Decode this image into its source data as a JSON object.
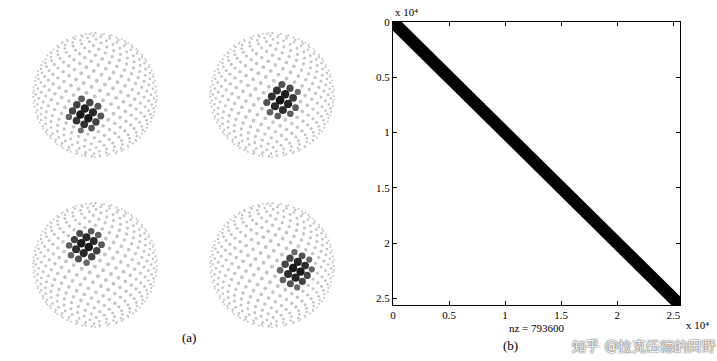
{
  "chart_data": {
    "type": "spy",
    "xlabel": "nz = 793600",
    "x_multiplier": "x 10⁴",
    "y_multiplier": "x 10⁴",
    "xlim": [
      0,
      2.56
    ],
    "ylim": [
      2.56,
      0
    ],
    "xticks": [
      0,
      0.5,
      1,
      1.5,
      2,
      2.5
    ],
    "yticks": [
      0,
      0.5,
      1,
      1.5,
      2,
      2.5
    ],
    "diagonals": [
      -0.07,
      -0.06,
      -0.05,
      -0.04,
      -0.03,
      -0.02,
      -0.01,
      0,
      0.01,
      0.02,
      0.03,
      0.04,
      0.05,
      0.06,
      0.07
    ],
    "color": "#000000",
    "grid": false
  },
  "panel_labels": [
    "(a)",
    "(b)"
  ],
  "watermark": "知乎 @拉克伍德的田野"
}
